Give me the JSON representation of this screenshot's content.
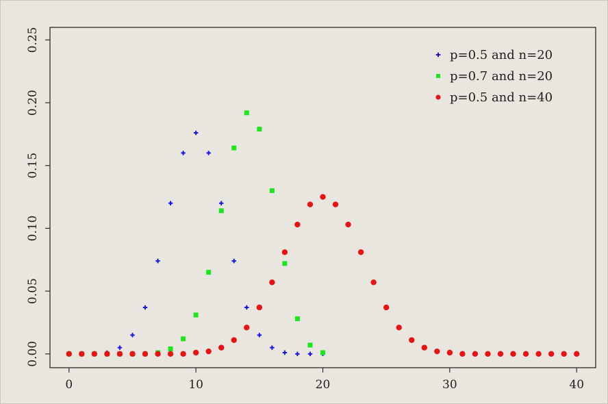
{
  "chart_data": {
    "type": "scatter",
    "title": "",
    "xlabel": "",
    "ylabel": "",
    "xlim": [
      -1.5,
      41.5
    ],
    "ylim": [
      -0.011,
      0.26
    ],
    "xticks": [
      0,
      10,
      20,
      30,
      40
    ],
    "xtick_labels": [
      "0",
      "10",
      "20",
      "30",
      "40"
    ],
    "yticks": [
      0.0,
      0.05,
      0.1,
      0.15,
      0.2,
      0.25
    ],
    "ytick_labels": [
      "0.00",
      "0.05",
      "0.10",
      "0.15",
      "0.20",
      "0.25"
    ],
    "grid": false,
    "legend_position": "top-right",
    "series": [
      {
        "name": "p=0.5 and n=20",
        "color": "#1515e6",
        "marker": "plus",
        "x": [
          0,
          1,
          2,
          3,
          4,
          5,
          6,
          7,
          8,
          9,
          10,
          11,
          12,
          13,
          14,
          15,
          16,
          17,
          18,
          19,
          20
        ],
        "y": [
          0.0,
          0.0,
          0.0,
          0.001,
          0.005,
          0.015,
          0.037,
          0.074,
          0.12,
          0.16,
          0.176,
          0.16,
          0.12,
          0.074,
          0.037,
          0.015,
          0.005,
          0.001,
          0.0,
          0.0,
          0.0
        ]
      },
      {
        "name": "p=0.7 and n=20",
        "color": "#1ee61e",
        "marker": "square",
        "x": [
          0,
          1,
          2,
          3,
          4,
          5,
          6,
          7,
          8,
          9,
          10,
          11,
          12,
          13,
          14,
          15,
          16,
          17,
          18,
          19,
          20
        ],
        "y": [
          0.0,
          0.0,
          0.0,
          0.0,
          0.0,
          0.0,
          0.0,
          0.001,
          0.004,
          0.012,
          0.031,
          0.065,
          0.114,
          0.164,
          0.192,
          0.179,
          0.13,
          0.072,
          0.028,
          0.007,
          0.001
        ]
      },
      {
        "name": "p=0.5 and n=40",
        "color": "#e61414",
        "marker": "circle",
        "x": [
          0,
          1,
          2,
          3,
          4,
          5,
          6,
          7,
          8,
          9,
          10,
          11,
          12,
          13,
          14,
          15,
          16,
          17,
          18,
          19,
          20,
          21,
          22,
          23,
          24,
          25,
          26,
          27,
          28,
          29,
          30,
          31,
          32,
          33,
          34,
          35,
          36,
          37,
          38,
          39,
          40
        ],
        "y": [
          0.0,
          0.0,
          0.0,
          0.0,
          0.0,
          0.0,
          0.0,
          0.0,
          0.0,
          0.0,
          0.001,
          0.002,
          0.005,
          0.011,
          0.021,
          0.037,
          0.057,
          0.081,
          0.103,
          0.119,
          0.125,
          0.119,
          0.103,
          0.081,
          0.057,
          0.037,
          0.021,
          0.011,
          0.005,
          0.002,
          0.001,
          0.0,
          0.0,
          0.0,
          0.0,
          0.0,
          0.0,
          0.0,
          0.0,
          0.0,
          0.0
        ]
      }
    ]
  }
}
